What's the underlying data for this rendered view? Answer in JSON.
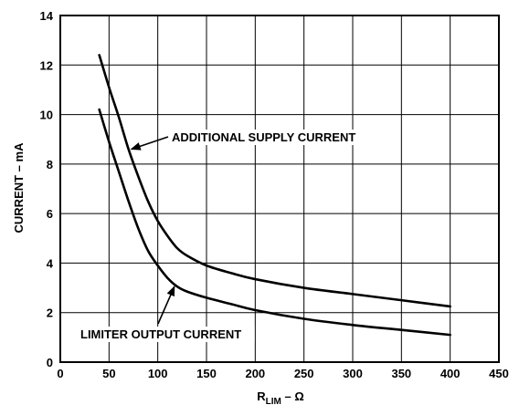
{
  "chart_data": {
    "type": "line",
    "title": "",
    "xlabel_main": "R",
    "xlabel_sub": "LIM",
    "xlabel_rest": " – Ω",
    "ylabel": "CURRENT – mA",
    "xlim": [
      0,
      450
    ],
    "ylim": [
      0,
      14
    ],
    "grid": true,
    "x_ticks": [
      0,
      50,
      100,
      150,
      200,
      250,
      300,
      350,
      400,
      450
    ],
    "y_ticks": [
      0,
      2,
      4,
      6,
      8,
      10,
      12,
      14
    ],
    "series": [
      {
        "name": "ADDITIONAL SUPPLY CURRENT",
        "x": [
          40,
          50,
          60,
          70,
          80,
          90,
          100,
          110,
          120,
          130,
          150,
          175,
          200,
          250,
          300,
          350,
          400
        ],
        "y": [
          12.4,
          11.1,
          9.9,
          8.6,
          7.5,
          6.5,
          5.7,
          5.1,
          4.6,
          4.3,
          3.9,
          3.6,
          3.35,
          3.0,
          2.75,
          2.5,
          2.25
        ]
      },
      {
        "name": "LIMITER OUTPUT CURRENT",
        "x": [
          40,
          50,
          60,
          70,
          80,
          90,
          100,
          110,
          120,
          130,
          150,
          175,
          200,
          250,
          300,
          350,
          400
        ],
        "y": [
          10.2,
          8.9,
          7.7,
          6.5,
          5.4,
          4.5,
          3.9,
          3.4,
          3.05,
          2.85,
          2.6,
          2.35,
          2.1,
          1.75,
          1.5,
          1.3,
          1.1
        ]
      }
    ],
    "annotations": [
      {
        "text": "ADDITIONAL SUPPLY CURRENT",
        "target_series": 0,
        "target_x": 70,
        "target_y": 8.6
      },
      {
        "text": "LIMITER OUTPUT CURRENT",
        "target_series": 1,
        "target_x": 117,
        "target_y": 3.2
      }
    ]
  }
}
